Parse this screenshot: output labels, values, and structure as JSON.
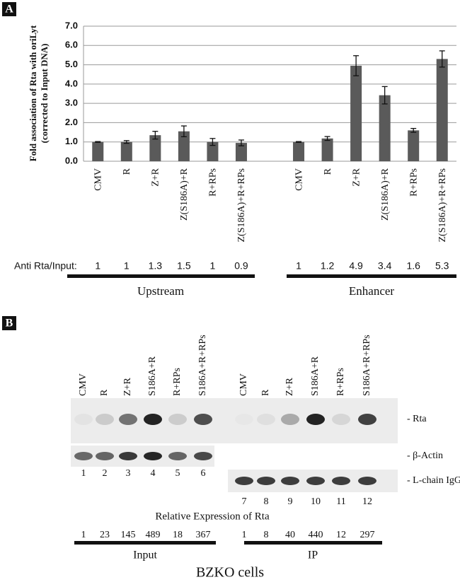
{
  "chart_data": {
    "type": "bar",
    "y_label_lines": [
      "Fold association of Rta with oriLyt",
      "(corrected to Input DNA)"
    ],
    "categories": [
      "CMV",
      "R",
      "Z+R",
      "Z(S186A)+R",
      "R+RPs",
      "Z(S186A)+R+RPs",
      null,
      "CMV",
      "R",
      "Z+R",
      "Z(S186A)+R",
      "R+RPs",
      "Z(S186A)+R+RPs"
    ],
    "values": [
      1.0,
      1.0,
      1.35,
      1.55,
      1.0,
      0.95,
      null,
      1.0,
      1.18,
      4.95,
      3.42,
      1.6,
      5.3
    ],
    "errors": [
      0.02,
      0.07,
      0.2,
      0.28,
      0.18,
      0.15,
      null,
      0.02,
      0.1,
      0.52,
      0.45,
      0.1,
      0.42
    ],
    "color": "#5a5a5a",
    "ylim": [
      0,
      7
    ],
    "yticks": [
      {
        "value": 0,
        "label": "0.0"
      },
      {
        "value": 1,
        "label": "1.0"
      },
      {
        "value": 2,
        "label": "2.0"
      },
      {
        "value": 3,
        "label": "3.0"
      },
      {
        "value": 4,
        "label": "4.0"
      },
      {
        "value": 5,
        "label": "5.0"
      },
      {
        "value": 6,
        "label": "6.0"
      },
      {
        "value": 7,
        "label": "7.0"
      }
    ],
    "grid": true
  },
  "panel_a": {
    "label": "A",
    "ratio_title": "Anti Rta/Input:",
    "ratios": [
      1,
      1,
      1.3,
      1.5,
      1,
      0.9,
      null,
      1,
      1.2,
      4.9,
      3.4,
      1.6,
      5.3
    ],
    "groups": [
      "Upstream",
      "Enhancer"
    ]
  },
  "panel_b": {
    "label": "B",
    "lanes": [
      "CMV",
      "R",
      "Z+R",
      "S186A+R",
      "R+RPs",
      "S186A+R+RPs",
      "CMV",
      "R",
      "Z+R",
      "S186A+R",
      "R+RPs",
      "S186A+R+RPs"
    ],
    "blot_labels": [
      "- Rta",
      "- β-Actin",
      "- L-chain IgG"
    ],
    "lane_numbers": [
      1,
      2,
      3,
      4,
      5,
      6,
      7,
      8,
      9,
      10,
      11,
      12
    ],
    "expression_title": "Relative Expression of Rta",
    "expression": [
      1,
      23,
      145,
      489,
      18,
      367,
      1,
      8,
      40,
      440,
      12,
      297
    ],
    "groups": [
      "Input",
      "IP"
    ],
    "footer": "BZKO cells"
  }
}
